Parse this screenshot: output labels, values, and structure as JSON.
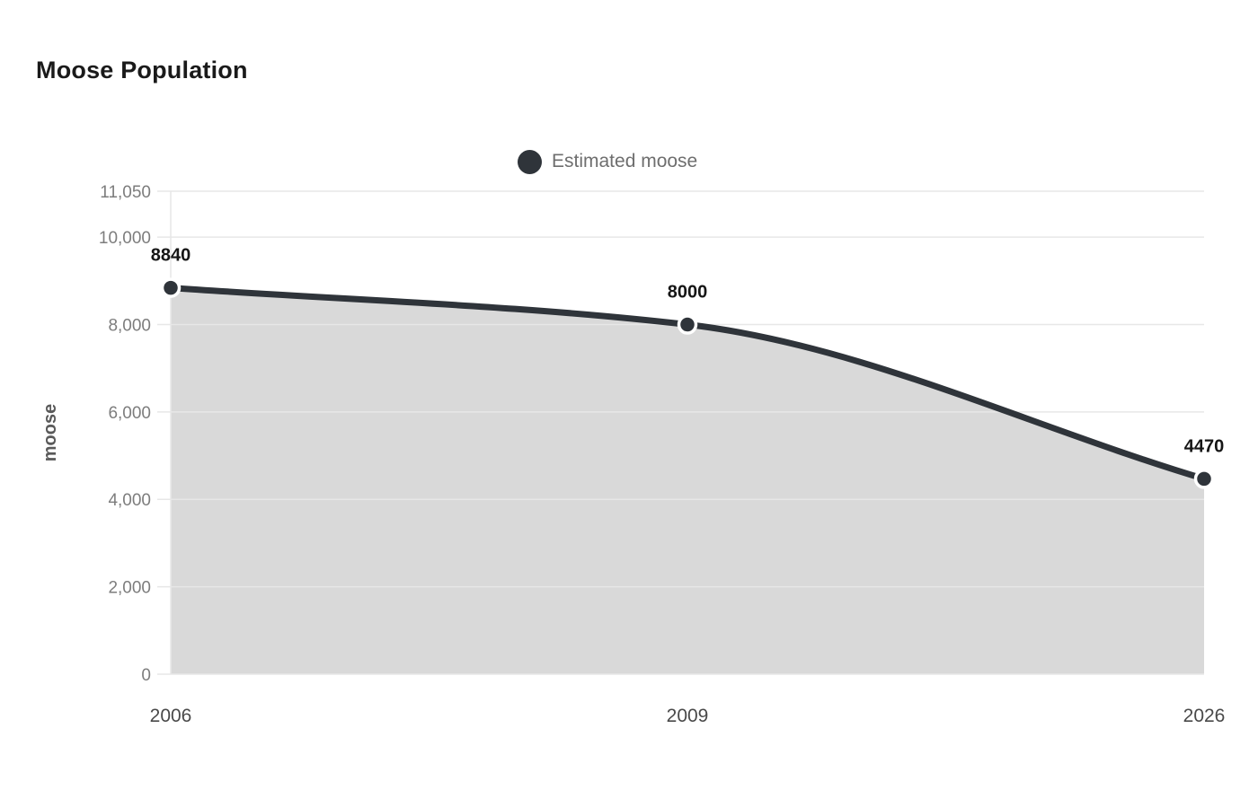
{
  "page": {
    "title": "Moose Population"
  },
  "legend": {
    "label": "Estimated moose"
  },
  "colors": {
    "line": "#2f343a",
    "marker": "#2f343a",
    "marker_ring": "#ffffff",
    "area": "#d9d9d9",
    "grid": "#e7e7e7",
    "title_text": "#1a1a1a",
    "ytick_text": "#7d7d7d",
    "xtick_text": "#494949",
    "legend_text": "#6e6e6e",
    "data_label_text": "#161616",
    "axis_title_text": "#5a5a5a"
  },
  "chart_data": {
    "type": "area",
    "title": "Moose Population",
    "xlabel": "",
    "ylabel": "moose",
    "x": [
      "2006",
      "2009",
      "2026"
    ],
    "series": [
      {
        "name": "Estimated moose",
        "values": [
          8840,
          8000,
          4470
        ]
      }
    ],
    "data_labels": [
      "8840",
      "8000",
      "4470"
    ],
    "ylim": [
      0,
      11050
    ],
    "yticks": [
      0,
      2000,
      4000,
      6000,
      8000,
      10000,
      11050
    ],
    "ytick_labels": [
      "0",
      "2,000",
      "4,000",
      "6,000",
      "8,000",
      "10,000",
      "11,050"
    ],
    "grid": true,
    "legend_position": "top-center",
    "x_axis_line_at_first_category": true
  }
}
